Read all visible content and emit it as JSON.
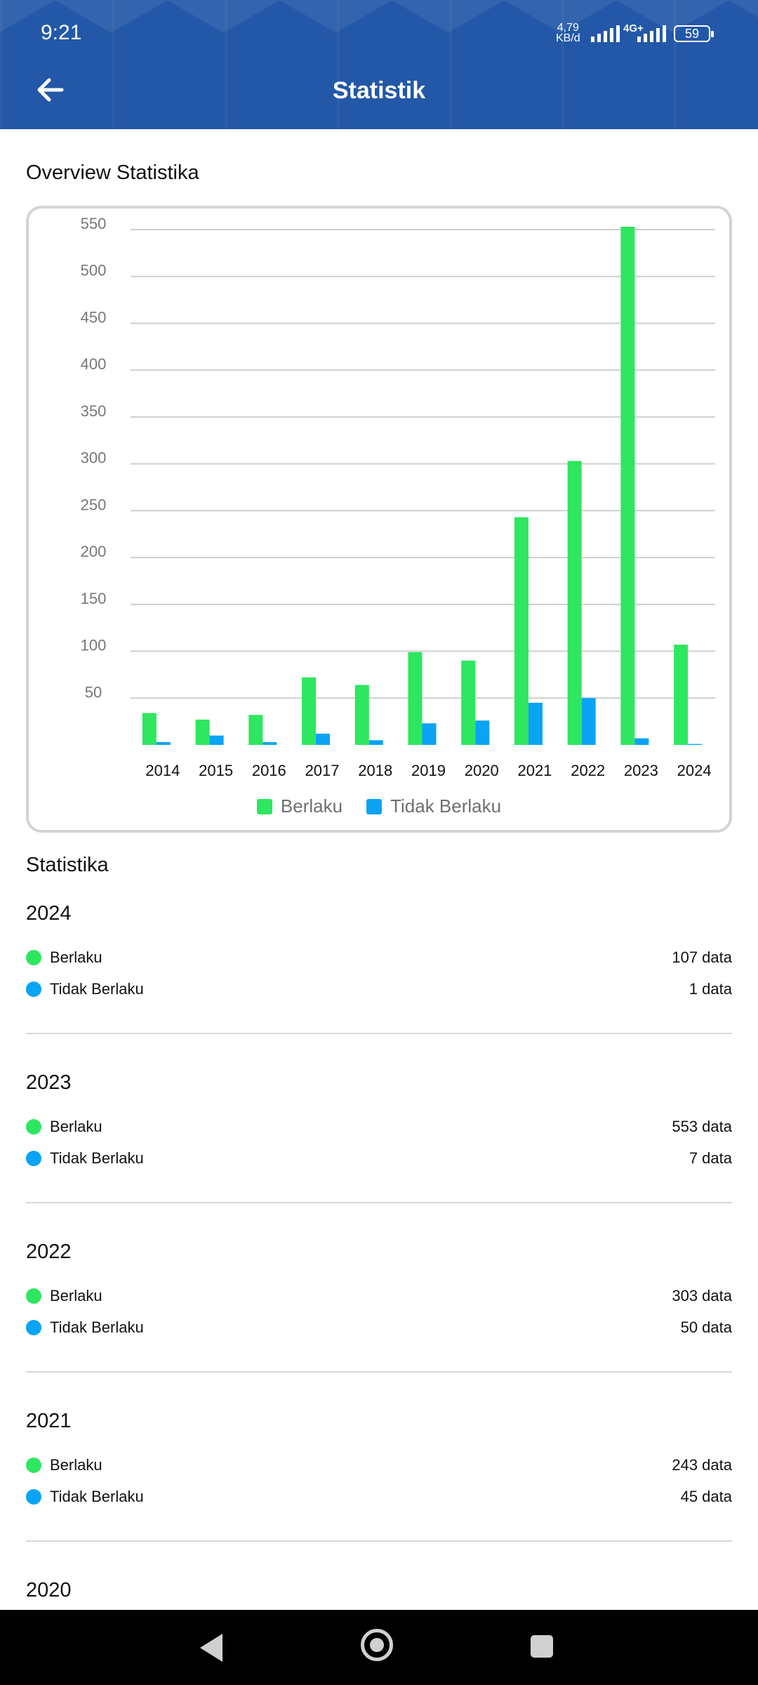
{
  "status_bar": {
    "time": "9:21",
    "net_speed": "4,79",
    "net_unit": "KB/d",
    "network_type": "4G+",
    "battery": "59"
  },
  "header": {
    "title": "Statistik",
    "back_icon": "arrow-left-icon"
  },
  "overview": {
    "title": "Overview Statistika"
  },
  "chart_data": {
    "type": "bar",
    "categories": [
      "2014",
      "2015",
      "2016",
      "2017",
      "2018",
      "2019",
      "2020",
      "2021",
      "2022",
      "2023",
      "2024"
    ],
    "series": [
      {
        "name": "Berlaku",
        "color": "#2ee65f",
        "values": [
          34,
          27,
          32,
          72,
          64,
          99,
          90,
          243,
          303,
          553,
          107
        ]
      },
      {
        "name": "Tidak Berlaku",
        "color": "#0aa3f5",
        "values": [
          3,
          10,
          3,
          12,
          5,
          23,
          26,
          45,
          50,
          7,
          1
        ]
      }
    ],
    "yticks": [
      "50",
      "100",
      "150",
      "200",
      "250",
      "300",
      "350",
      "400",
      "450",
      "500",
      "550"
    ],
    "ylim": [
      0,
      550
    ],
    "grid": true,
    "legend_position": "bottom"
  },
  "stats_section": {
    "title": "Statistika",
    "years": [
      {
        "year": "2024",
        "berlaku_label": "Berlaku",
        "berlaku_value": "107 data",
        "tidak_label": "Tidak Berlaku",
        "tidak_value": "1 data"
      },
      {
        "year": "2023",
        "berlaku_label": "Berlaku",
        "berlaku_value": "553 data",
        "tidak_label": "Tidak Berlaku",
        "tidak_value": "7 data"
      },
      {
        "year": "2022",
        "berlaku_label": "Berlaku",
        "berlaku_value": "303 data",
        "tidak_label": "Tidak Berlaku",
        "tidak_value": "50 data"
      },
      {
        "year": "2021",
        "berlaku_label": "Berlaku",
        "berlaku_value": "243 data",
        "tidak_label": "Tidak Berlaku",
        "tidak_value": "45 data"
      },
      {
        "year": "2020",
        "berlaku_label": "",
        "berlaku_value": "",
        "tidak_label": "",
        "tidak_value": ""
      }
    ]
  },
  "colors": {
    "header_blue": "#2358a8",
    "berlaku_green": "#2ee65f",
    "tidak_blue": "#0aa3f5"
  }
}
